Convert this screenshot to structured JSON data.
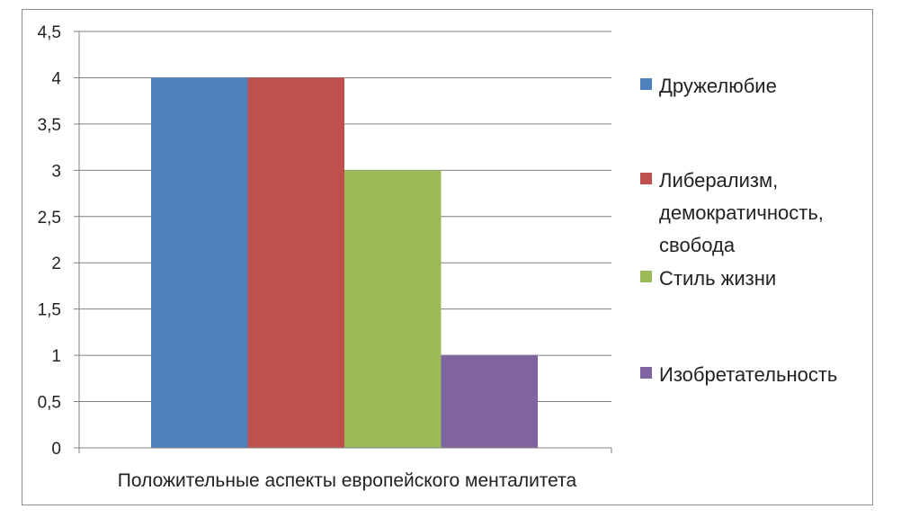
{
  "chart_data": {
    "type": "bar",
    "categories": [
      "Положительные аспекты европейского менталитета"
    ],
    "series": [
      {
        "name": "Дружелюбие",
        "values": [
          4
        ],
        "color": "#4F81BD"
      },
      {
        "name": "Либерализм, демократичность, свобода",
        "values": [
          4
        ],
        "color": "#C0504D"
      },
      {
        "name": "Стиль жизни",
        "values": [
          3
        ],
        "color": "#9BBB59"
      },
      {
        "name": "Изобретательность",
        "values": [
          1
        ],
        "color": "#8064A2"
      }
    ],
    "ylim": [
      0,
      4.5
    ],
    "ytick_labels": [
      "0",
      "0,5",
      "1",
      "1,5",
      "2",
      "2,5",
      "3",
      "3,5",
      "4",
      "4,5"
    ],
    "grid": true,
    "legend_position": "right"
  },
  "legend": {
    "labels": [
      "Дружелюбие",
      "Либерализм,\nдемократичность,\nсвобода",
      "Стиль жизни",
      "Изобретательность"
    ]
  }
}
